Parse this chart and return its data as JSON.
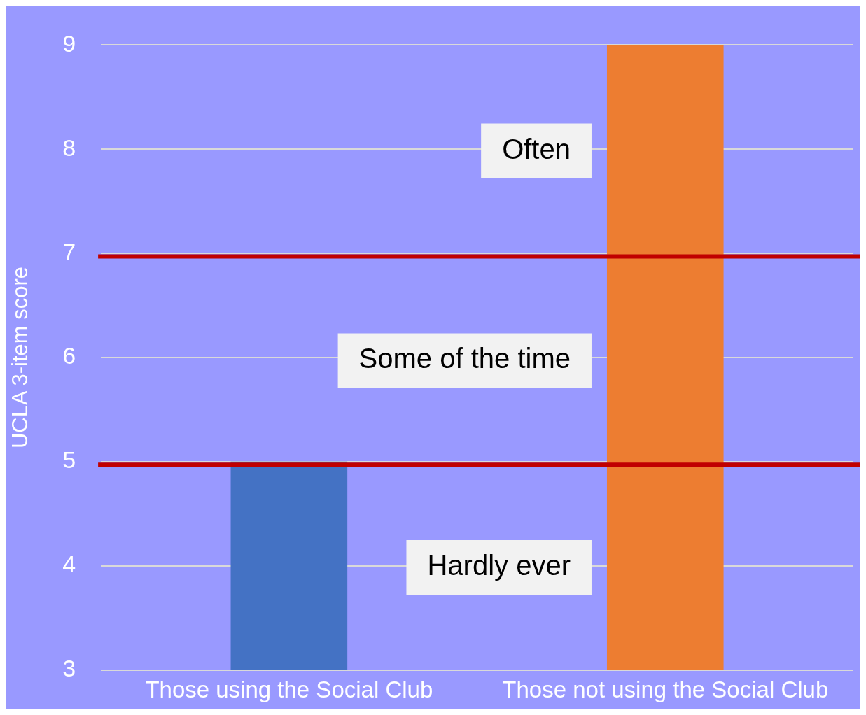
{
  "chart_data": {
    "type": "bar",
    "ylabel": "UCLA 3-item score",
    "categories": [
      "Those using the Social Club",
      "Those not using the Social Club"
    ],
    "values": [
      5,
      9
    ],
    "colors": [
      "#4472c4",
      "#ed7d31"
    ],
    "ylim": [
      3,
      9
    ],
    "yticks": [
      3,
      4,
      5,
      6,
      7,
      8,
      9
    ],
    "grid": "y",
    "legend": false,
    "ref_lines": [
      {
        "axis": "y",
        "value": 4.97,
        "color": "#c00000"
      },
      {
        "axis": "y",
        "value": 6.97,
        "color": "#c00000"
      }
    ],
    "annotations": [
      "Often",
      "Some of the time",
      "Hardly ever"
    ]
  }
}
